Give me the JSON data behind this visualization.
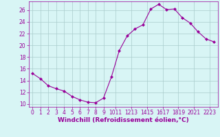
{
  "x": [
    0,
    1,
    2,
    3,
    4,
    5,
    6,
    7,
    8,
    9,
    10,
    11,
    12,
    13,
    14,
    15,
    16,
    17,
    18,
    19,
    20,
    21,
    22,
    23
  ],
  "y": [
    15.2,
    14.3,
    13.1,
    12.6,
    12.2,
    11.3,
    10.7,
    10.3,
    10.2,
    11.0,
    14.6,
    19.1,
    21.6,
    22.8,
    23.5,
    26.2,
    27.0,
    26.1,
    26.2,
    24.7,
    23.8,
    22.3,
    21.1,
    20.6
  ],
  "line_color": "#990099",
  "marker": "D",
  "marker_size": 2.0,
  "bg_color": "#d8f5f5",
  "grid_color": "#aacccc",
  "xlabel": "Windchill (Refroidissement éolien,°C)",
  "xlabel_color": "#990099",
  "xlabel_fontsize": 6.5,
  "yticks": [
    10,
    12,
    14,
    16,
    18,
    20,
    22,
    24,
    26
  ],
  "xtick_labels": [
    "0",
    "1",
    "2",
    "3",
    "4",
    "5",
    "6",
    "7",
    "8",
    "9",
    "1011",
    "1213",
    "1415",
    "1617",
    "1819",
    "2021",
    "2223"
  ],
  "xtick_positions": [
    0,
    1,
    2,
    3,
    4,
    5,
    6,
    7,
    8,
    9,
    10.5,
    12.5,
    14.5,
    16.5,
    18.5,
    20.5,
    22.5
  ],
  "ylim": [
    9.5,
    27.5
  ],
  "xlim": [
    -0.5,
    23.5
  ],
  "tick_fontsize": 5.5,
  "tick_color": "#990099"
}
